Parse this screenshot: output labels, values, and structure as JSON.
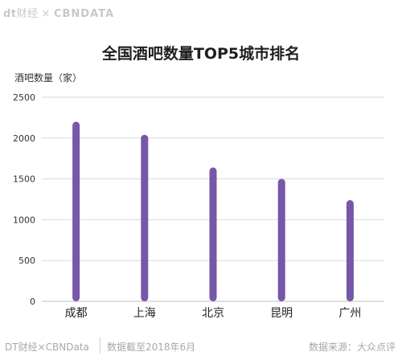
{
  "brand": {
    "dt": "dt",
    "cn": "财经",
    "sep": "×",
    "cbn": "CBNDATA"
  },
  "footer": {
    "left": "DT财经×CBNData",
    "middle": "数据截至2018年6月",
    "right": "数据来源：大众点评"
  },
  "colors": {
    "bar": "#7657a8",
    "grid": "#d9d9d9",
    "axis_text": "#333333"
  },
  "chart_data": {
    "type": "bar",
    "title": "全国酒吧数量TOP5城市排名",
    "ylabel": "酒吧数量（家）",
    "xlabel": "",
    "categories": [
      "成都",
      "上海",
      "北京",
      "昆明",
      "广州"
    ],
    "values": [
      2200,
      2040,
      1640,
      1500,
      1240
    ],
    "ylim": [
      0,
      2500
    ],
    "yticks": [
      0,
      500,
      1000,
      1500,
      2000,
      2500
    ],
    "grid": true
  }
}
